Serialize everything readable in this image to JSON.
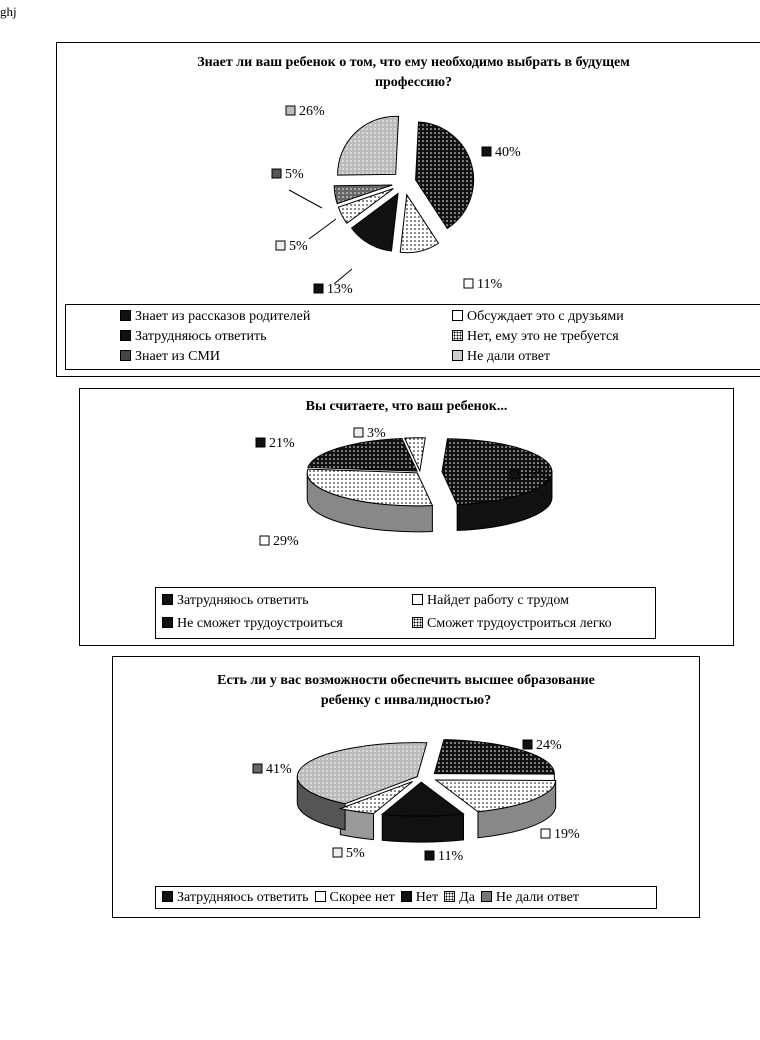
{
  "corner_text": "ghj",
  "chart_data": [
    {
      "type": "pie",
      "title_line1": "Знает ли ваш ребенок о том, что ему необходимо выбрать в будущем",
      "title_line2": "профессию?",
      "slices": [
        {
          "name": "Знает из рассказов родителей",
          "value": 40,
          "label": "40%",
          "fill": "dark-dots"
        },
        {
          "name": "Обсуждает это с друзьями",
          "value": 11,
          "label": "11%",
          "fill": "white-dots"
        },
        {
          "name": "Затрудняюсь ответить",
          "value": 13,
          "label": "13%",
          "fill": "dark"
        },
        {
          "name": "Нет, ему это не требуется",
          "value": 5,
          "label": "5%",
          "fill": "dots"
        },
        {
          "name": "Знает из СМИ",
          "value": 5,
          "label": "5%",
          "fill": "dark-gray"
        },
        {
          "name": "Не дали ответ",
          "value": 26,
          "label": "26%",
          "fill": "light-gray"
        }
      ],
      "legend": [
        "Знает из рассказов родителей",
        "Обсуждает это с друзьями",
        "Затрудняюсь ответить",
        "Нет, ему это не требуется",
        "Знает из СМИ",
        "Не дали ответ"
      ]
    },
    {
      "type": "pie",
      "title": "Вы считаете, что ваш ребенок...",
      "slices": [
        {
          "name": "Затрудняюсь ответить",
          "value": 47,
          "label": "47%"
        },
        {
          "name": "Найдет работу с трудом",
          "value": 29,
          "label": "29%"
        },
        {
          "name": "Не сможет трудоустроиться",
          "value": 21,
          "label": "21%"
        },
        {
          "name": "Сможет трудоустроиться легко",
          "value": 3,
          "label": "3%"
        }
      ],
      "legend": [
        "Затрудняюсь ответить",
        "Найдет работу с трудом",
        "Не сможет трудоустроиться",
        "Сможет трудоустроиться легко"
      ]
    },
    {
      "type": "pie",
      "title_line1": "Есть ли у вас возможности обеспечить высшее образование",
      "title_line2": "ребенку с инвалидностью?",
      "slices": [
        {
          "name": "Затрудняюсь ответить",
          "value": 24,
          "label": "24%"
        },
        {
          "name": "Скорее нет",
          "value": 19,
          "label": "19%"
        },
        {
          "name": "Нет",
          "value": 11,
          "label": "11%"
        },
        {
          "name": "Да",
          "value": 5,
          "label": "5%"
        },
        {
          "name": "Не дали ответ",
          "value": 41,
          "label": "41%"
        }
      ],
      "legend": [
        "Затрудняюсь ответить",
        "Скорее нет",
        "Нет",
        "Да",
        "Не дали ответ"
      ]
    }
  ]
}
